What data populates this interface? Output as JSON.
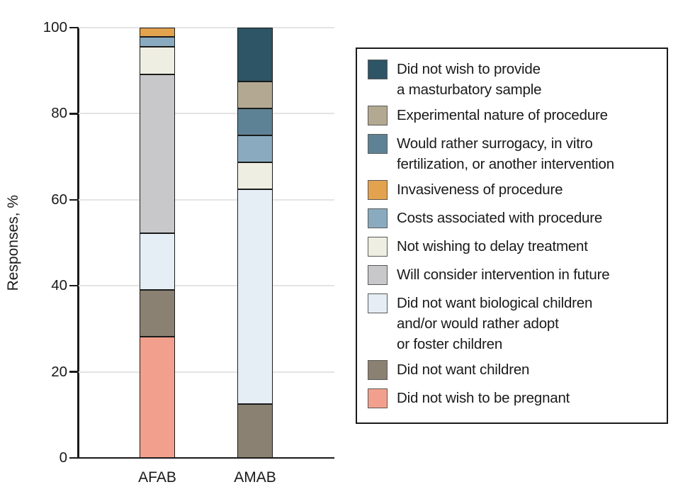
{
  "figure": {
    "background": "#ffffff",
    "text_color": "#1a1a1a",
    "grid_color": "#e4e4e4",
    "axis_color": "#1a1a1a",
    "bar_border_color": "#1b1b1b",
    "legend_border_color": "#1a1a1a",
    "swatch_border_color": "#595959"
  },
  "chart_data": {
    "type": "bar",
    "subtype": "stacked-vertical",
    "title": "",
    "xlabel": "",
    "ylabel": "Responses, %",
    "categories": [
      "AFAB",
      "AMAB"
    ],
    "ylim": [
      0,
      100
    ],
    "yticks": [
      0,
      20,
      40,
      60,
      80,
      100
    ],
    "grid": "horizontal",
    "legend_position": "right",
    "stack_order": "legend_top_equals_bar_top",
    "series": [
      {
        "name": "Did not wish to provide a masturbatory sample",
        "legend_lines": [
          "Did not wish to provide",
          "a masturbatory sample"
        ],
        "color": "#2d5566",
        "values": [
          0,
          12.5
        ]
      },
      {
        "name": "Experimental nature of procedure",
        "legend_lines": [
          "Experimental nature of procedure"
        ],
        "color": "#b3a992",
        "values": [
          0,
          6.25
        ]
      },
      {
        "name": "Would rather surrogacy, in vitro fertilization, or another intervention",
        "legend_lines": [
          "Would rather surrogacy, in vitro",
          "fertilization, or another intervention"
        ],
        "color": "#5e8295",
        "values": [
          0,
          6.25
        ]
      },
      {
        "name": "Invasiveness of procedure",
        "legend_lines": [
          "Invasiveness of procedure"
        ],
        "color": "#e2a24e",
        "values": [
          2.2,
          0
        ]
      },
      {
        "name": "Costs associated with procedure",
        "legend_lines": [
          "Costs associated with procedure"
        ],
        "color": "#8aabbf",
        "values": [
          2.2,
          6.25
        ]
      },
      {
        "name": "Not wishing to delay treatment",
        "legend_lines": [
          "Not wishing to delay treatment"
        ],
        "color": "#efeee2",
        "values": [
          6.5,
          6.25
        ]
      },
      {
        "name": "Will consider intervention in future",
        "legend_lines": [
          "Will consider intervention in future"
        ],
        "color": "#c8c8ca",
        "values": [
          36.8,
          0
        ]
      },
      {
        "name": "Did not want biological children and/or would rather adopt or foster children",
        "legend_lines": [
          "Did not want biological children",
          "and/or would rather adopt",
          "or foster children"
        ],
        "color": "#e4eef4",
        "values": [
          13.2,
          50
        ]
      },
      {
        "name": "Did not want children",
        "legend_lines": [
          "Did not want children"
        ],
        "color": "#8a8172",
        "values": [
          10.9,
          12.5
        ]
      },
      {
        "name": "Did not wish to be pregnant",
        "legend_lines": [
          "Did not wish to be pregnant"
        ],
        "color": "#f2a08d",
        "values": [
          28.2,
          0
        ]
      }
    ]
  }
}
